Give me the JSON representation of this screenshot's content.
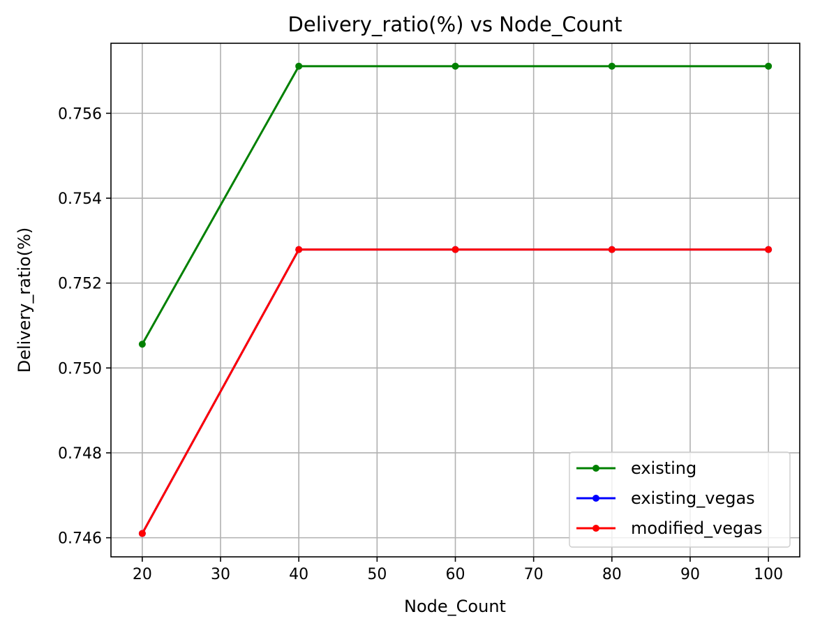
{
  "chart_data": {
    "type": "line",
    "title": "Delivery_ratio(%) vs Node_Count",
    "xlabel": "Node_Count",
    "ylabel": "Delivery_ratio(%)",
    "x": [
      20,
      40,
      60,
      80,
      100
    ],
    "xlim": [
      16,
      104
    ],
    "ylim": [
      0.74555,
      0.75765
    ],
    "xticks": [
      20,
      30,
      40,
      50,
      60,
      70,
      80,
      90,
      100
    ],
    "yticks": [
      0.746,
      0.748,
      0.75,
      0.752,
      0.754,
      0.756
    ],
    "ytick_labels": [
      "0.746",
      "0.748",
      "0.750",
      "0.752",
      "0.754",
      "0.756"
    ],
    "grid": true,
    "legend_position": "lower-right",
    "series": [
      {
        "name": "existing",
        "color": "#008000",
        "values": [
          0.75056,
          0.75711,
          0.75711,
          0.75711,
          0.75711
        ]
      },
      {
        "name": "existing_vegas",
        "color": "#0000ff",
        "values": [
          0.7461,
          0.75279,
          0.75279,
          0.75279,
          0.75279
        ]
      },
      {
        "name": "modified_vegas",
        "color": "#ff0000",
        "values": [
          0.7461,
          0.75279,
          0.75279,
          0.75279,
          0.75279
        ]
      }
    ]
  }
}
